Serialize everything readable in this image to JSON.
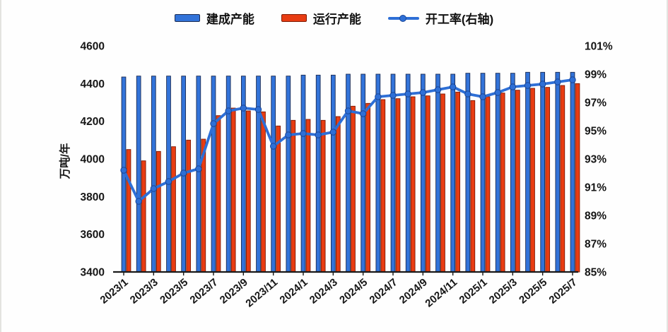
{
  "legend": [
    {
      "label": "建成产能",
      "kind": "bar",
      "color": "#3273d9"
    },
    {
      "label": "运行产能",
      "kind": "bar",
      "color": "#e83c12"
    },
    {
      "label": "开工率(右轴)",
      "kind": "line",
      "color": "#2e6fd6"
    }
  ],
  "chart_data": {
    "type": "combo-bar-line",
    "categories": [
      "2023/1",
      "2023/2",
      "2023/3",
      "2023/4",
      "2023/5",
      "2023/6",
      "2023/7",
      "2023/8",
      "2023/9",
      "2023/10",
      "2023/11",
      "2023/12",
      "2024/1",
      "2024/2",
      "2024/3",
      "2024/4",
      "2024/5",
      "2024/6",
      "2024/7",
      "2024/8",
      "2024/9",
      "2024/10",
      "2024/11",
      "2024/12",
      "2025/1",
      "2025/2",
      "2025/3",
      "2025/4",
      "2025/5",
      "2025/6",
      "2025/7"
    ],
    "series": [
      {
        "name": "建成产能",
        "type": "bar",
        "axis": "left",
        "color": "#3273d9",
        "edge": "#1b2b52",
        "values": [
          4435,
          4440,
          4440,
          4440,
          4440,
          4440,
          4440,
          4440,
          4440,
          4440,
          4440,
          4440,
          4445,
          4445,
          4445,
          4450,
          4450,
          4450,
          4450,
          4450,
          4450,
          4450,
          4450,
          4455,
          4455,
          4455,
          4455,
          4460,
          4460,
          4460,
          4460
        ]
      },
      {
        "name": "运行产能",
        "type": "bar",
        "axis": "left",
        "color": "#e83c12",
        "edge": "#7e1a04",
        "values": [
          4050,
          3990,
          4040,
          4065,
          4100,
          4105,
          4230,
          4270,
          4255,
          4250,
          4175,
          4205,
          4210,
          4205,
          4225,
          4280,
          4295,
          4315,
          4320,
          4330,
          4335,
          4345,
          4355,
          4310,
          4330,
          4350,
          4365,
          4375,
          4380,
          4390,
          4400
        ]
      },
      {
        "name": "开工率(右轴)",
        "type": "line",
        "axis": "right",
        "color": "#2e6fd6",
        "marker_edge": "#1a4697",
        "values": [
          92.2,
          90.0,
          90.9,
          91.4,
          92.0,
          92.3,
          95.5,
          96.4,
          96.6,
          96.5,
          93.9,
          94.7,
          94.8,
          94.7,
          94.9,
          96.4,
          96.2,
          97.4,
          97.5,
          97.6,
          97.7,
          97.9,
          98.1,
          97.6,
          97.4,
          97.7,
          98.1,
          98.2,
          98.3,
          98.45,
          98.6
        ]
      }
    ],
    "left_axis": {
      "title": "万吨/年",
      "min": 3400,
      "max": 4600,
      "tick_step": 200,
      "ticks": [
        "3400",
        "3600",
        "3800",
        "4000",
        "4200",
        "4400",
        "4600"
      ]
    },
    "right_axis": {
      "min": 85,
      "max": 101,
      "tick_step": 2,
      "ticks": [
        "85%",
        "87%",
        "89%",
        "91%",
        "93%",
        "95%",
        "97%",
        "99%",
        "101%"
      ]
    },
    "x_tick_labels": [
      "2023/1",
      "2023/3",
      "2023/5",
      "2023/7",
      "2023/9",
      "2023/11",
      "2024/1",
      "2024/3",
      "2024/5",
      "2024/7",
      "2024/9",
      "2024/11",
      "2025/1",
      "2025/3",
      "2025/5",
      "2025/7"
    ],
    "grid": false,
    "legend_position": "top",
    "axis_color": "#1a1a1a",
    "text_color": "#161616"
  }
}
